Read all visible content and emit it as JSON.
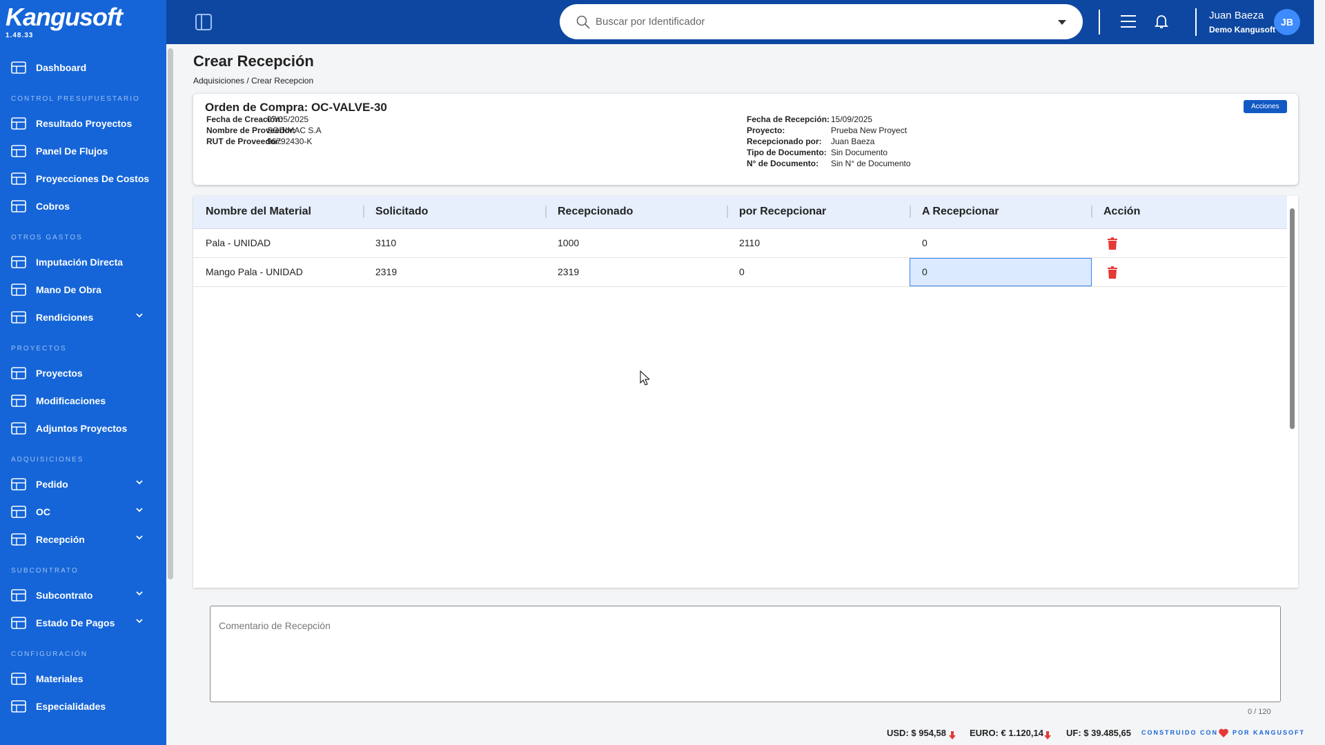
{
  "sidebar": {
    "brand": "Kangusoft",
    "version": "1.48.33",
    "groups": [
      {
        "title": null,
        "items": [
          {
            "label": "Dashboard",
            "expandable": false
          }
        ]
      },
      {
        "title": "CONTROL PRESUPUESTARIO",
        "items": [
          {
            "label": "Resultado Proyectos",
            "expandable": false
          },
          {
            "label": "Panel De Flujos",
            "expandable": false
          },
          {
            "label": "Proyecciones De Costos",
            "expandable": false
          },
          {
            "label": "Cobros",
            "expandable": false
          }
        ]
      },
      {
        "title": "OTROS GASTOS",
        "items": [
          {
            "label": "Imputación Directa",
            "expandable": false
          },
          {
            "label": "Mano De Obra",
            "expandable": false
          },
          {
            "label": "Rendiciones",
            "expandable": true
          }
        ]
      },
      {
        "title": "PROYECTOS",
        "items": [
          {
            "label": "Proyectos",
            "expandable": false
          },
          {
            "label": "Modificaciones",
            "expandable": false
          },
          {
            "label": "Adjuntos Proyectos",
            "expandable": false
          }
        ]
      },
      {
        "title": "ADQUISICIONES",
        "items": [
          {
            "label": "Pedido",
            "expandable": true
          },
          {
            "label": "OC",
            "expandable": true
          },
          {
            "label": "Recepción",
            "expandable": true
          }
        ]
      },
      {
        "title": "SUBCONTRATO",
        "items": [
          {
            "label": "Subcontrato",
            "expandable": true
          },
          {
            "label": "Estado De Pagos",
            "expandable": true
          }
        ]
      },
      {
        "title": "CONFIGURACIÓN",
        "items": [
          {
            "label": "Materiales",
            "expandable": false
          },
          {
            "label": "Especialidades",
            "expandable": false
          }
        ]
      }
    ]
  },
  "header": {
    "search_placeholder": "Buscar por Identificador",
    "user_name": "Juan Baeza",
    "company": "Demo Kangusoft",
    "initials": "JB"
  },
  "page": {
    "title": "Crear Recepción",
    "breadcrumb": [
      "Adquisiciones",
      "/",
      "Crear Recepcion"
    ]
  },
  "order": {
    "title": "Orden de Compra: OC-VALVE-30",
    "button": "Acciones",
    "left_fields": [
      [
        "Fecha de Creación:",
        "07/05/2025"
      ],
      [
        "Nombre de Proveedor:",
        "SODIMAC S.A"
      ],
      [
        "RUT de Proveedor:",
        "96792430-K"
      ]
    ],
    "right_fields": [
      [
        "Fecha de Recepción:",
        "15/09/2025"
      ],
      [
        "Proyecto:",
        "Prueba New Proyect"
      ],
      [
        "Recepcionado por:",
        "Juan Baeza"
      ],
      [
        "Tipo de Documento:",
        "Sin Documento"
      ],
      [
        "N° de Documento:",
        "Sin N° de Documento"
      ]
    ]
  },
  "table": {
    "headers": [
      "Nombre del Material",
      "Solicitado",
      "Recepcionado",
      "por Recepcionar",
      "A Recepcionar",
      "Acción"
    ],
    "rows": [
      [
        "Pala - UNIDAD",
        3110,
        1000,
        2110,
        0
      ],
      [
        "Mango Pala - UNIDAD",
        2319,
        2319,
        0,
        0
      ]
    ]
  },
  "comment": {
    "placeholder": "Comentario de Recepción",
    "counter": "0 / 120"
  },
  "footer": {
    "rates": [
      "USD: $ 954,58",
      "EURO: € 1.120,14",
      "UF: $ 39.485,65"
    ],
    "built_with": "CONSTRUIDO CON",
    "by": "POR KANGUSOFT"
  }
}
